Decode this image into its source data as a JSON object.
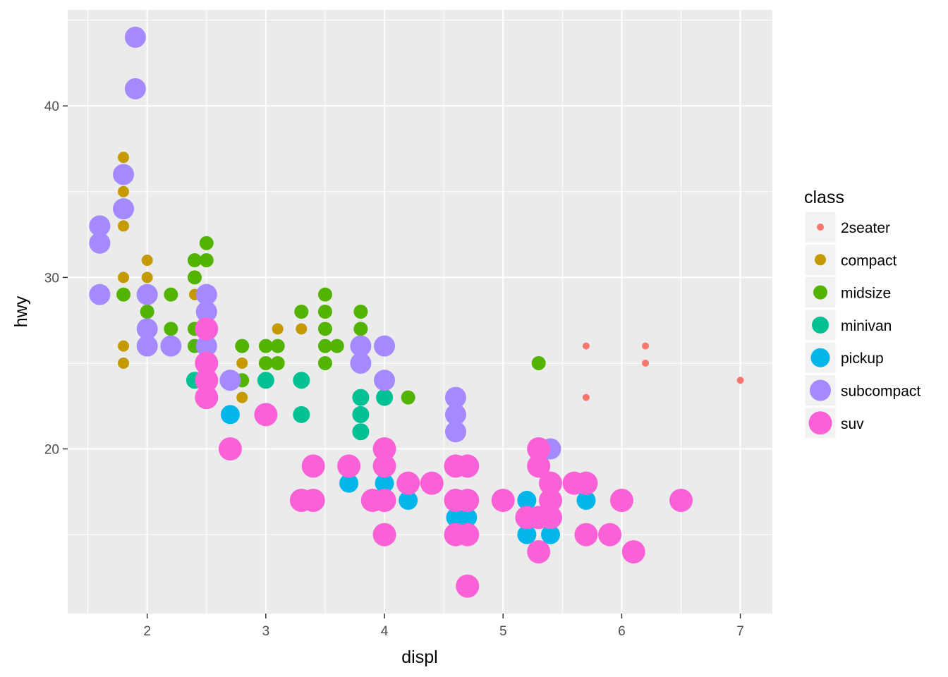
{
  "chart_data": {
    "type": "scatter",
    "title": "",
    "xlabel": "displ",
    "ylabel": "hwy",
    "xlim": [
      1.33,
      7.27
    ],
    "ylim": [
      10.4,
      45.6
    ],
    "x_ticks": [
      2,
      3,
      4,
      5,
      6,
      7
    ],
    "y_ticks": [
      20,
      30,
      40
    ],
    "grid": true,
    "legend": {
      "title": "class",
      "placement": "right",
      "entries": [
        "2seater",
        "compact",
        "midsize",
        "minivan",
        "pickup",
        "subcompact",
        "suv"
      ]
    },
    "series": [
      {
        "name": "2seater",
        "color": "#F8766D",
        "size": 1,
        "points": [
          [
            5.7,
            26
          ],
          [
            5.7,
            23
          ],
          [
            6.2,
            26
          ],
          [
            6.2,
            25
          ],
          [
            7.0,
            24
          ]
        ]
      },
      {
        "name": "compact",
        "color": "#C49A00",
        "size": 2,
        "points": [
          [
            1.8,
            37
          ],
          [
            1.8,
            35
          ],
          [
            1.8,
            33
          ],
          [
            1.8,
            30
          ],
          [
            1.8,
            26
          ],
          [
            1.8,
            25
          ],
          [
            2.0,
            31
          ],
          [
            2.0,
            30
          ],
          [
            2.0,
            29
          ],
          [
            2.2,
            29
          ],
          [
            2.2,
            27
          ],
          [
            2.4,
            31
          ],
          [
            2.4,
            29
          ],
          [
            2.4,
            27
          ],
          [
            2.5,
            27
          ],
          [
            2.5,
            25
          ],
          [
            2.8,
            25
          ],
          [
            2.8,
            24
          ],
          [
            2.8,
            23
          ],
          [
            3.0,
            26
          ],
          [
            3.1,
            27
          ],
          [
            3.3,
            27
          ]
        ]
      },
      {
        "name": "midsize",
        "color": "#53B400",
        "size": 3,
        "points": [
          [
            1.8,
            29
          ],
          [
            2.0,
            29
          ],
          [
            2.0,
            28
          ],
          [
            2.2,
            29
          ],
          [
            2.2,
            27
          ],
          [
            2.4,
            31
          ],
          [
            2.4,
            30
          ],
          [
            2.4,
            27
          ],
          [
            2.4,
            26
          ],
          [
            2.5,
            32
          ],
          [
            2.5,
            31
          ],
          [
            2.8,
            26
          ],
          [
            2.8,
            24
          ],
          [
            3.0,
            26
          ],
          [
            3.0,
            25
          ],
          [
            3.1,
            26
          ],
          [
            3.1,
            25
          ],
          [
            3.3,
            28
          ],
          [
            3.5,
            29
          ],
          [
            3.5,
            28
          ],
          [
            3.5,
            27
          ],
          [
            3.5,
            26
          ],
          [
            3.5,
            25
          ],
          [
            3.6,
            26
          ],
          [
            3.8,
            28
          ],
          [
            3.8,
            27
          ],
          [
            3.8,
            26
          ],
          [
            3.8,
            23
          ],
          [
            3.8,
            22
          ],
          [
            3.8,
            21
          ],
          [
            4.0,
            23
          ],
          [
            4.2,
            23
          ],
          [
            5.3,
            25
          ]
        ]
      },
      {
        "name": "minivan",
        "color": "#00C094",
        "size": 4,
        "points": [
          [
            2.4,
            24
          ],
          [
            3.0,
            24
          ],
          [
            3.3,
            24
          ],
          [
            3.3,
            22
          ],
          [
            3.8,
            23
          ],
          [
            3.8,
            22
          ],
          [
            3.8,
            21
          ],
          [
            4.0,
            23
          ]
        ]
      },
      {
        "name": "pickup",
        "color": "#00B6EB",
        "size": 5,
        "points": [
          [
            2.7,
            22
          ],
          [
            2.7,
            20
          ],
          [
            3.4,
            19
          ],
          [
            3.4,
            17
          ],
          [
            3.7,
            18
          ],
          [
            4.0,
            20
          ],
          [
            4.0,
            18
          ],
          [
            4.2,
            17
          ],
          [
            4.6,
            17
          ],
          [
            4.6,
            16
          ],
          [
            4.7,
            17
          ],
          [
            4.7,
            16
          ],
          [
            5.2,
            17
          ],
          [
            5.2,
            16
          ],
          [
            5.2,
            15
          ],
          [
            5.4,
            15
          ],
          [
            5.7,
            17
          ],
          [
            5.9,
            15
          ]
        ]
      },
      {
        "name": "subcompact",
        "color": "#A58AFF",
        "size": 6,
        "points": [
          [
            1.6,
            33
          ],
          [
            1.6,
            32
          ],
          [
            1.6,
            29
          ],
          [
            1.8,
            36
          ],
          [
            1.8,
            34
          ],
          [
            1.9,
            44
          ],
          [
            1.9,
            41
          ],
          [
            2.0,
            29
          ],
          [
            2.0,
            27
          ],
          [
            2.0,
            26
          ],
          [
            2.2,
            26
          ],
          [
            2.5,
            29
          ],
          [
            2.5,
            28
          ],
          [
            2.5,
            26
          ],
          [
            2.7,
            24
          ],
          [
            3.8,
            26
          ],
          [
            3.8,
            25
          ],
          [
            4.0,
            26
          ],
          [
            4.0,
            24
          ],
          [
            4.6,
            23
          ],
          [
            4.6,
            22
          ],
          [
            4.6,
            21
          ],
          [
            5.4,
            20
          ]
        ]
      },
      {
        "name": "suv",
        "color": "#FB61D7",
        "size": 7,
        "points": [
          [
            2.5,
            27
          ],
          [
            2.5,
            25
          ],
          [
            2.5,
            24
          ],
          [
            2.5,
            23
          ],
          [
            2.7,
            20
          ],
          [
            3.0,
            22
          ],
          [
            3.3,
            17
          ],
          [
            3.4,
            19
          ],
          [
            3.4,
            17
          ],
          [
            3.7,
            19
          ],
          [
            3.9,
            17
          ],
          [
            4.0,
            20
          ],
          [
            4.0,
            19
          ],
          [
            4.0,
            17
          ],
          [
            4.0,
            15
          ],
          [
            4.2,
            18
          ],
          [
            4.4,
            18
          ],
          [
            4.6,
            19
          ],
          [
            4.6,
            17
          ],
          [
            4.6,
            15
          ],
          [
            4.7,
            19
          ],
          [
            4.7,
            17
          ],
          [
            4.7,
            15
          ],
          [
            4.7,
            12
          ],
          [
            5.0,
            17
          ],
          [
            5.2,
            16
          ],
          [
            5.3,
            20
          ],
          [
            5.3,
            19
          ],
          [
            5.3,
            16
          ],
          [
            5.3,
            14
          ],
          [
            5.4,
            18
          ],
          [
            5.4,
            17
          ],
          [
            5.4,
            16
          ],
          [
            5.6,
            18
          ],
          [
            5.7,
            18
          ],
          [
            5.7,
            15
          ],
          [
            5.9,
            15
          ],
          [
            6.0,
            17
          ],
          [
            6.1,
            14
          ],
          [
            6.5,
            17
          ]
        ]
      }
    ]
  }
}
